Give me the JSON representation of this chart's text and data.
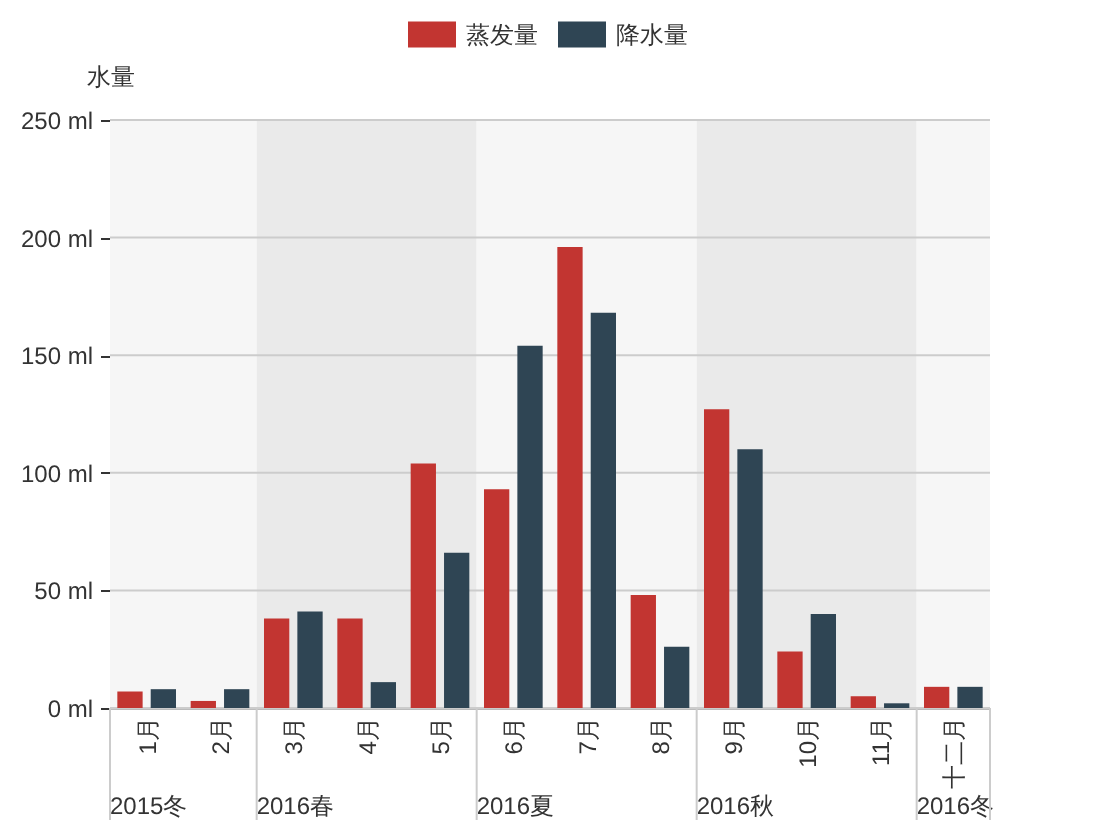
{
  "chart_data": {
    "type": "bar",
    "categories": [
      "1月",
      "2月",
      "3月",
      "4月",
      "5月",
      "6月",
      "7月",
      "8月",
      "9月",
      "10月",
      "11月",
      "十二月"
    ],
    "series": [
      {
        "name": "蒸发量",
        "color": "#c23531",
        "values": [
          7,
          3,
          38,
          38,
          104,
          93,
          196,
          48,
          127,
          24,
          5,
          9
        ]
      },
      {
        "name": "降水量",
        "color": "#2f4554",
        "values": [
          8,
          8,
          41,
          11,
          66,
          154,
          168,
          26,
          110,
          40,
          2,
          9
        ]
      }
    ],
    "ylabel": "水量",
    "ylim": [
      0,
      250
    ],
    "yticks": [
      {
        "value": 0,
        "label": "0 ml"
      },
      {
        "value": 50,
        "label": "50 ml"
      },
      {
        "value": 100,
        "label": "100 ml"
      },
      {
        "value": 150,
        "label": "150 ml"
      },
      {
        "value": 200,
        "label": "200 ml"
      },
      {
        "value": 250,
        "label": "250 ml"
      }
    ],
    "grid": "y",
    "legend": "top",
    "bands": [
      {
        "axis": "x",
        "from": "1月",
        "to": "2月",
        "label": "2015冬",
        "color": "#f6f6f6"
      },
      {
        "axis": "x",
        "from": "3月",
        "to": "5月",
        "label": "2016春",
        "color": "#eaeaea"
      },
      {
        "axis": "x",
        "from": "6月",
        "to": "8月",
        "label": "2016夏",
        "color": "#f6f6f6"
      },
      {
        "axis": "x",
        "from": "9月",
        "to": "11月",
        "label": "2016秋",
        "color": "#eaeaea"
      },
      {
        "axis": "x",
        "from": "十二月",
        "to": "十二月",
        "label": "2016冬",
        "color": "#f6f6f6"
      }
    ]
  }
}
